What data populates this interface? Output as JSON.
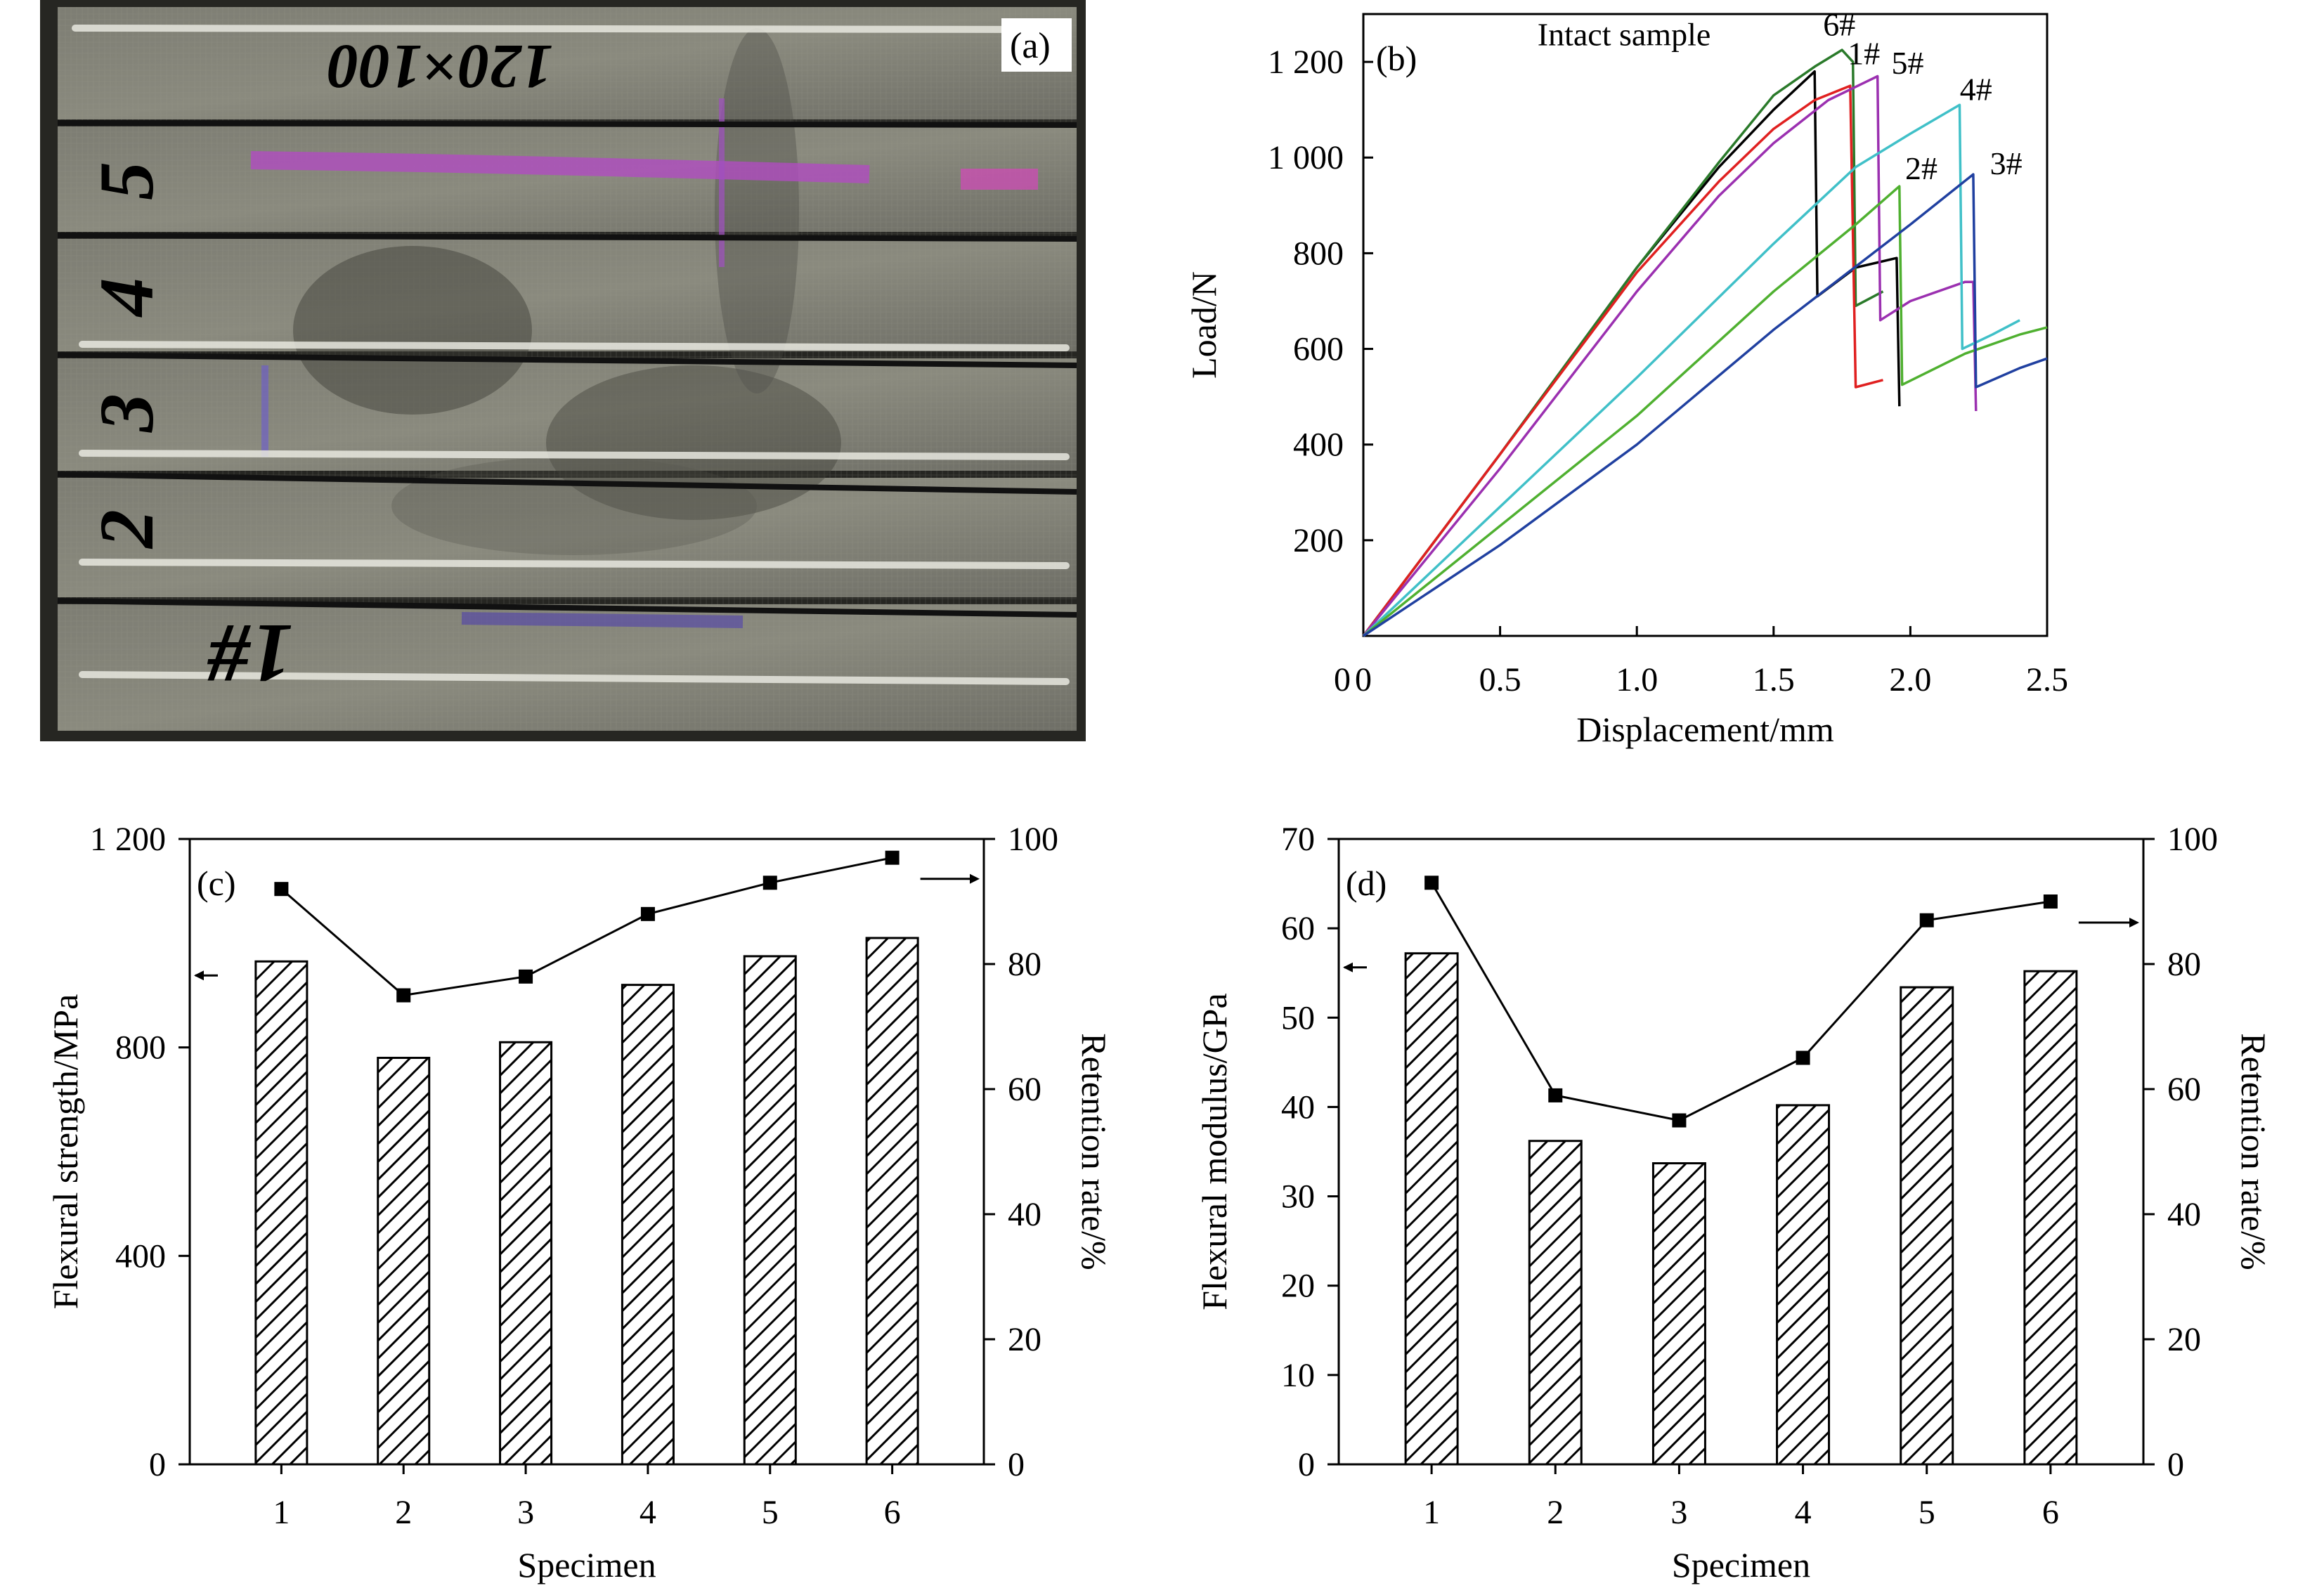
{
  "chart_data": [
    {
      "panel": "(a)",
      "type": "image",
      "bar_markings": [
        "120×100",
        "5",
        "4",
        "3",
        "2",
        "1#"
      ]
    },
    {
      "panel": "(b)",
      "type": "line",
      "xlabel": "Displacement/mm",
      "ylabel": "Load/N",
      "xlim": [
        0,
        2.5
      ],
      "ylim": [
        0,
        1300
      ],
      "xticks": [
        "0",
        "0.5",
        "1.0",
        "1.5",
        "2.0",
        "2.5"
      ],
      "yticks": [
        "200",
        "400",
        "600",
        "800",
        "1 000",
        "1 200"
      ],
      "series": [
        {
          "name": "Intact sample",
          "color": "#000000",
          "points": [
            [
              0,
              0
            ],
            [
              0.5,
              380
            ],
            [
              1.0,
              770
            ],
            [
              1.3,
              980
            ],
            [
              1.5,
              1100
            ],
            [
              1.65,
              1180
            ],
            [
              1.66,
              710
            ],
            [
              1.8,
              770
            ],
            [
              1.95,
              790
            ],
            [
              1.96,
              480
            ]
          ]
        },
        {
          "name": "6#",
          "color": "#2a7a2a",
          "points": [
            [
              0,
              0
            ],
            [
              0.5,
              380
            ],
            [
              1.0,
              770
            ],
            [
              1.3,
              990
            ],
            [
              1.5,
              1130
            ],
            [
              1.65,
              1190
            ],
            [
              1.75,
              1225
            ],
            [
              1.79,
              1200
            ],
            [
              1.8,
              690
            ],
            [
              1.9,
              720
            ]
          ]
        },
        {
          "name": "1#",
          "color": "#e02020",
          "points": [
            [
              0,
              0
            ],
            [
              0.5,
              380
            ],
            [
              1.0,
              760
            ],
            [
              1.3,
              950
            ],
            [
              1.5,
              1060
            ],
            [
              1.65,
              1120
            ],
            [
              1.78,
              1150
            ],
            [
              1.8,
              520
            ],
            [
              1.9,
              535
            ]
          ]
        },
        {
          "name": "5#",
          "color": "#9b30b0",
          "points": [
            [
              0,
              0
            ],
            [
              0.5,
              350
            ],
            [
              1.0,
              720
            ],
            [
              1.3,
              920
            ],
            [
              1.5,
              1030
            ],
            [
              1.7,
              1120
            ],
            [
              1.88,
              1170
            ],
            [
              1.89,
              660
            ],
            [
              2.0,
              700
            ],
            [
              2.2,
              740
            ],
            [
              2.23,
              740
            ],
            [
              2.24,
              470
            ]
          ]
        },
        {
          "name": "4#",
          "color": "#40c0c8",
          "points": [
            [
              0,
              0
            ],
            [
              0.5,
              270
            ],
            [
              1.0,
              540
            ],
            [
              1.5,
              820
            ],
            [
              1.8,
              980
            ],
            [
              2.0,
              1050
            ],
            [
              2.18,
              1110
            ],
            [
              2.19,
              600
            ],
            [
              2.3,
              630
            ],
            [
              2.4,
              660
            ]
          ]
        },
        {
          "name": "2#",
          "color": "#4fb030",
          "points": [
            [
              0,
              0
            ],
            [
              0.5,
              230
            ],
            [
              1.0,
              460
            ],
            [
              1.5,
              720
            ],
            [
              1.8,
              860
            ],
            [
              1.96,
              940
            ],
            [
              1.97,
              525
            ],
            [
              2.2,
              590
            ],
            [
              2.4,
              630
            ],
            [
              2.5,
              645
            ]
          ]
        },
        {
          "name": "3#",
          "color": "#2040a0",
          "points": [
            [
              0,
              0
            ],
            [
              0.5,
              190
            ],
            [
              1.0,
              400
            ],
            [
              1.5,
              640
            ],
            [
              2.0,
              860
            ],
            [
              2.23,
              965
            ],
            [
              2.24,
              520
            ],
            [
              2.4,
              560
            ],
            [
              2.5,
              580
            ]
          ]
        }
      ]
    },
    {
      "panel": "(c)",
      "type": "bar",
      "categories": [
        "1",
        "2",
        "3",
        "4",
        "5",
        "6"
      ],
      "xlabel": "Specimen",
      "ylabel": "Flexural strength/MPa",
      "ylabel_right": "Retention rate/%",
      "ylim": [
        0,
        1200
      ],
      "ylim_right": [
        0,
        100
      ],
      "yticks": [
        "0",
        "400",
        "800",
        "1 200"
      ],
      "yticks_right": [
        "0",
        "20",
        "40",
        "60",
        "80",
        "100"
      ],
      "series": [
        {
          "axis": "left",
          "values": [
            965,
            780,
            810,
            920,
            975,
            1010
          ]
        },
        {
          "axis": "right",
          "values": [
            92,
            75,
            78,
            88,
            93,
            97
          ]
        }
      ]
    },
    {
      "panel": "(d)",
      "type": "bar",
      "categories": [
        "1",
        "2",
        "3",
        "4",
        "5",
        "6"
      ],
      "xlabel": "Specimen",
      "ylabel": "Flexural modulus/GPa",
      "ylabel_right": "Retention rate/%",
      "ylim": [
        0,
        70
      ],
      "ylim_right": [
        0,
        100
      ],
      "yticks": [
        "0",
        "10",
        "20",
        "30",
        "40",
        "50",
        "60",
        "70"
      ],
      "yticks_right": [
        "0",
        "20",
        "40",
        "60",
        "80",
        "100"
      ],
      "series": [
        {
          "axis": "left",
          "values": [
            57.2,
            36.2,
            33.7,
            40.2,
            53.4,
            55.2
          ]
        },
        {
          "axis": "right",
          "values": [
            93,
            59,
            55,
            65,
            87,
            90
          ]
        }
      ]
    }
  ]
}
